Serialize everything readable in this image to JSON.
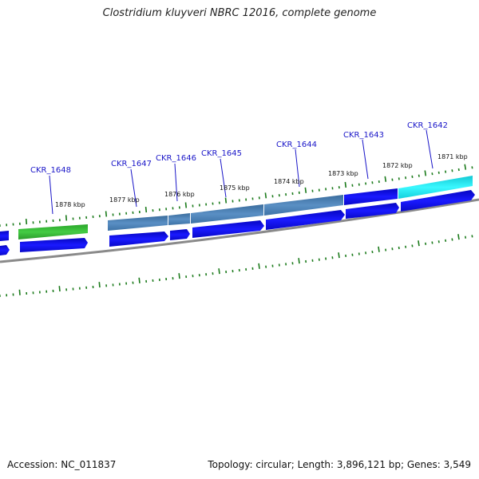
{
  "header": {
    "title": "Clostridium kluyveri NBRC 12016, complete genome"
  },
  "footer": {
    "accession": "Accession: NC_011837",
    "topology": "Topology: circular; Length: 3,896,121 bp; Genes: 3,549"
  },
  "ruler": {
    "labels": [
      "1878 kbp",
      "1877 kbp",
      "1876 kbp",
      "1875 kbp",
      "1874 kbp",
      "1873 kbp",
      "1872 kbp",
      "1871 kbp"
    ]
  },
  "genes": [
    {
      "label": "CKR_1648",
      "color": "#33b833"
    },
    {
      "label": "CKR_1647",
      "color": "#4a7fb5"
    },
    {
      "label": "CKR_1646",
      "color": "#4a7fb5"
    },
    {
      "label": "CKR_1645",
      "color": "#4a7fb5"
    },
    {
      "label": "CKR_1644",
      "color": "#4a7fb5"
    },
    {
      "label": "CKR_1643",
      "color": "#0c0ce0"
    },
    {
      "label": "CKR_1642",
      "color": "#19e6f0"
    }
  ],
  "colors": {
    "tick": "#1a7a1a",
    "cds_strand": "#0a0ae6",
    "backbone": "#808080",
    "label": "#1a16c8"
  }
}
